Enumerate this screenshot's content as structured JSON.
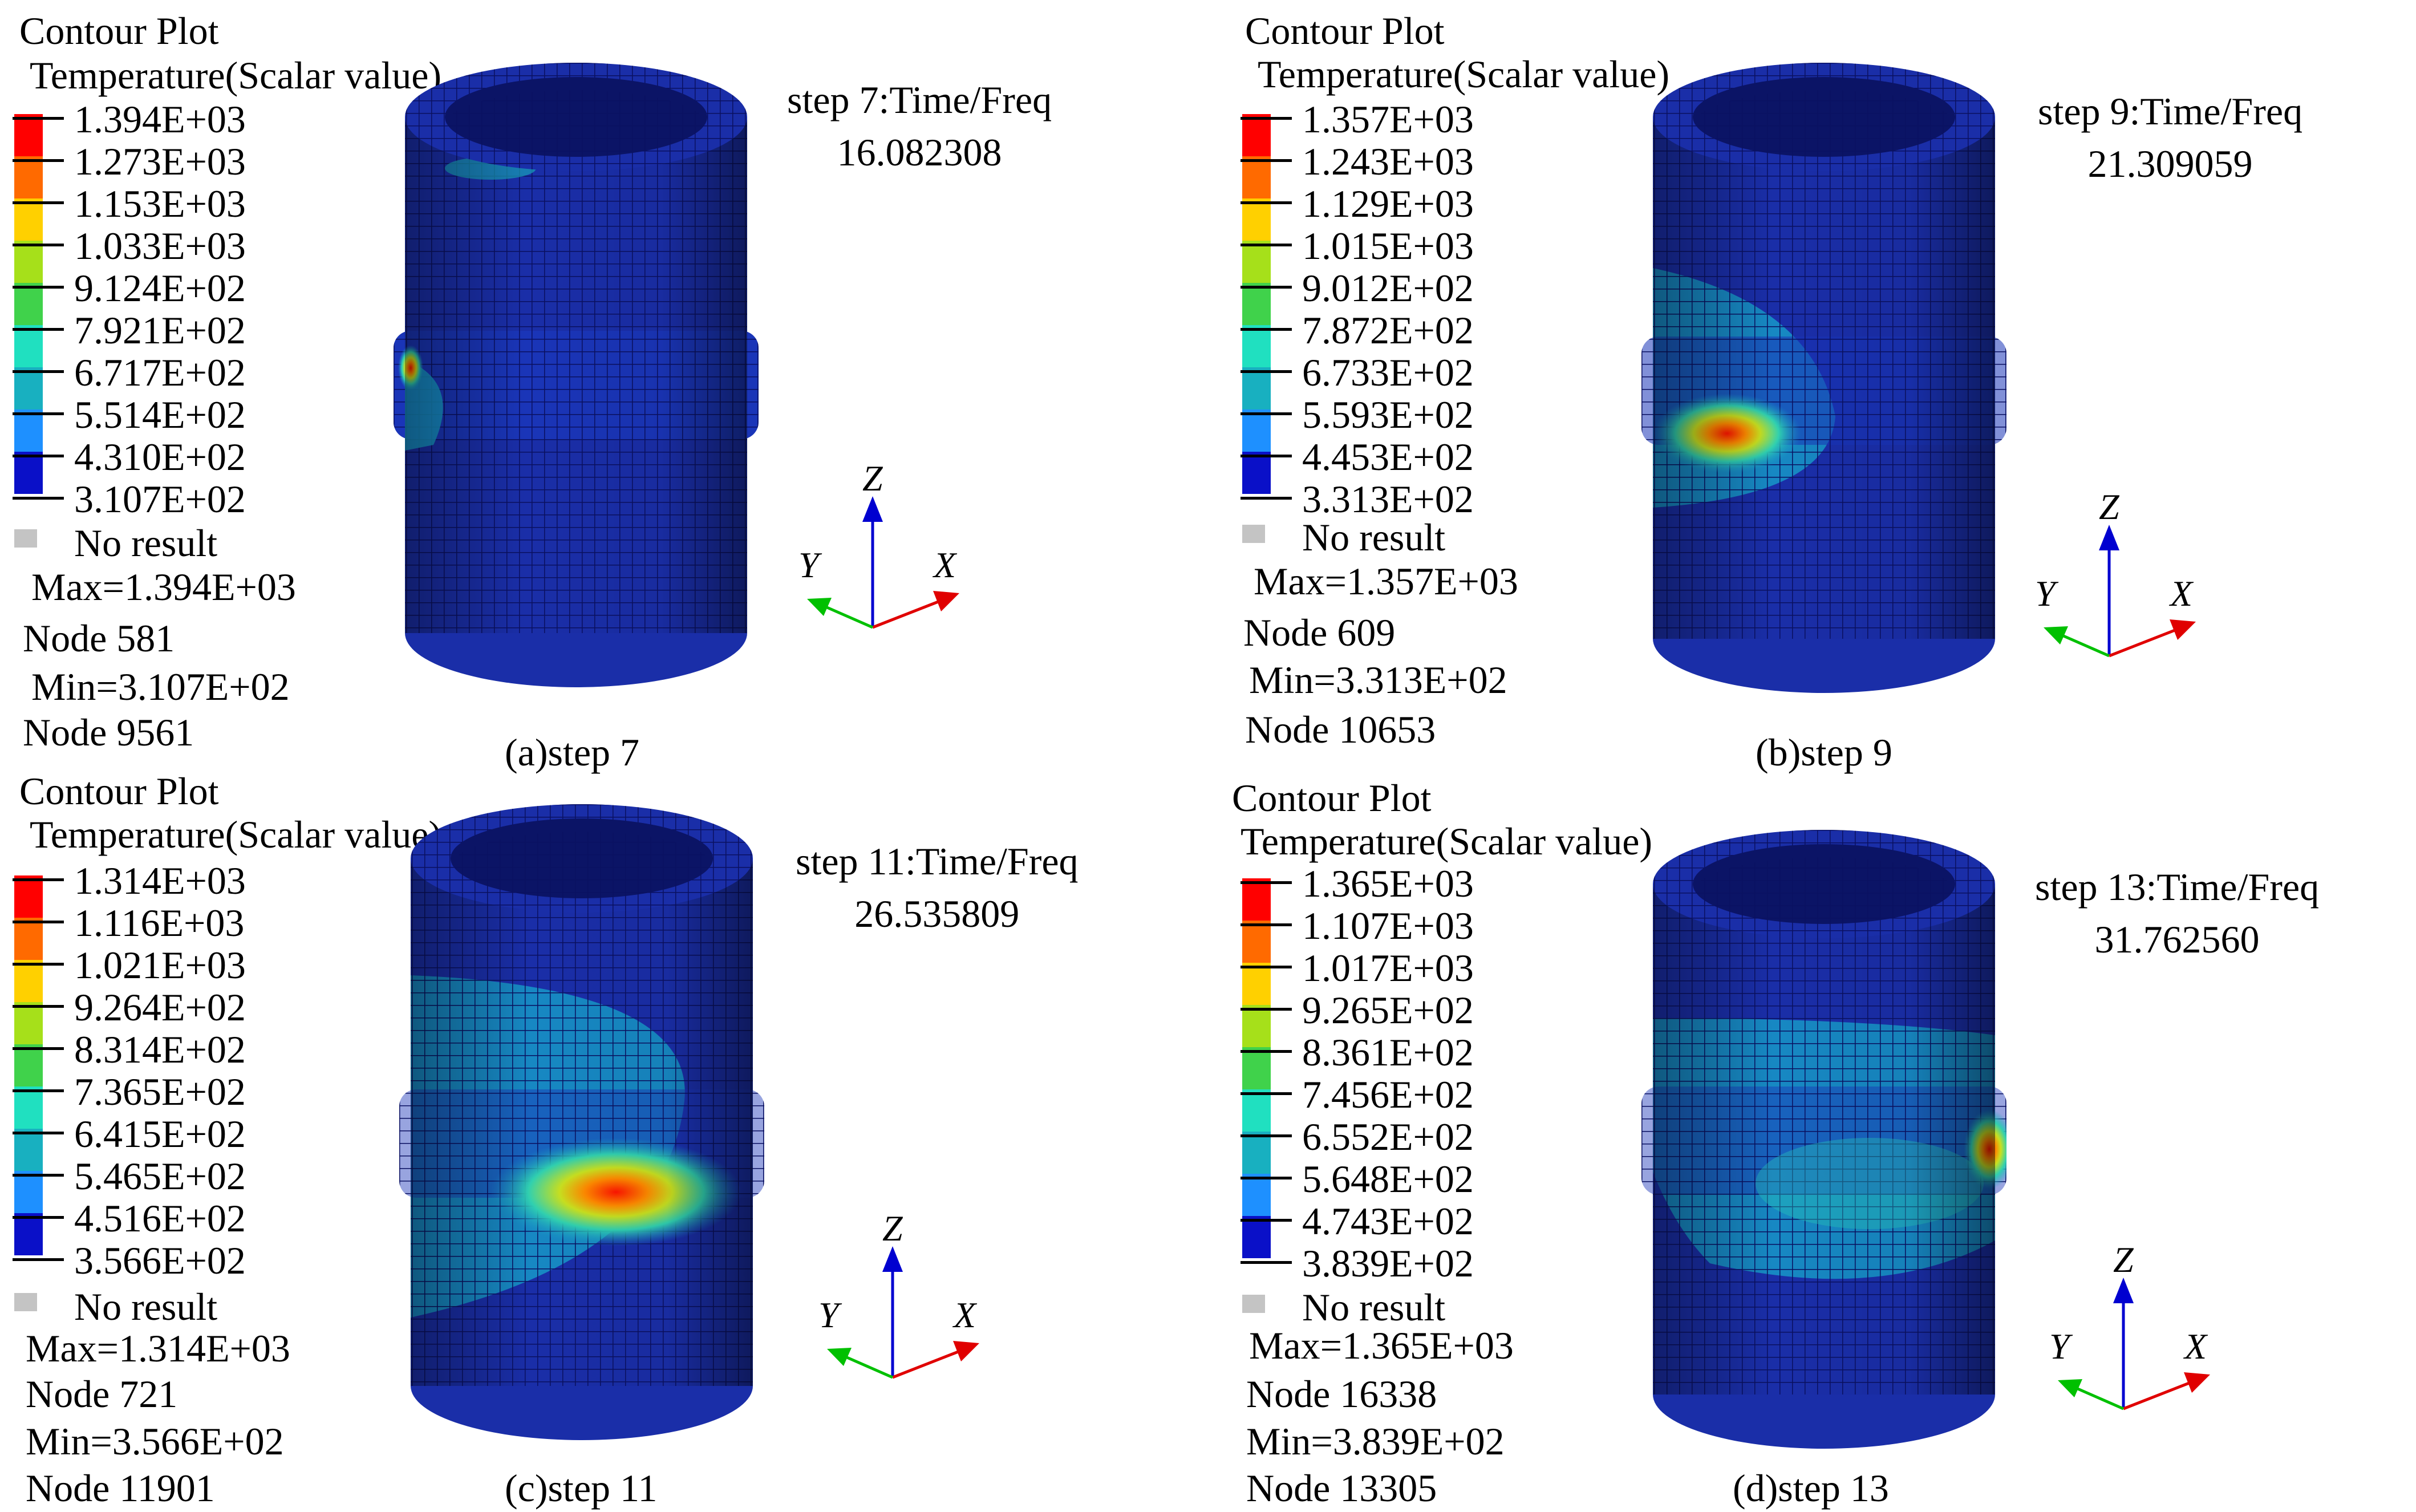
{
  "colors": {
    "scale": [
      "#ff0000",
      "#ff6a00",
      "#ffd000",
      "#a6e01a",
      "#40d24b",
      "#20e0c0",
      "#18b0c0",
      "#1e90ff",
      "#1040e0",
      "#0a10c8"
    ],
    "mesh_base": "#1a2ea8",
    "mesh_line": "#0a1060",
    "axis_x": "#e00000",
    "axis_y": "#00c000",
    "axis_z": "#0000d0",
    "no_result": "#c4c4c4"
  },
  "panels": [
    {
      "title": "Contour Plot",
      "subtitle": "Temperature(Scalar value)",
      "legend": [
        "1.394E+03",
        "1.273E+03",
        "1.153E+03",
        "1.033E+03",
        "9.124E+02",
        "7.921E+02",
        "6.717E+02",
        "5.514E+02",
        "4.310E+02",
        "3.107E+02"
      ],
      "no_result": "No result",
      "max": "Max=1.394E+03",
      "max_node": "Node 581",
      "min": "Min=3.107E+02",
      "min_node": "Node 9561",
      "step_line1": "step 7:Time/Freq",
      "step_line2": "16.082308",
      "caption": "(a)step 7",
      "axes": {
        "x": "X",
        "y": "Y",
        "z": "Z"
      }
    },
    {
      "title": "Contour Plot",
      "subtitle": "Temperature(Scalar value)",
      "legend": [
        "1.357E+03",
        "1.243E+03",
        "1.129E+03",
        "1.015E+03",
        "9.012E+02",
        "7.872E+02",
        "6.733E+02",
        "5.593E+02",
        "4.453E+02",
        "3.313E+02"
      ],
      "no_result": "No result",
      "max": "Max=1.357E+03",
      "max_node": "Node 609",
      "min": "Min=3.313E+02",
      "min_node": "Node 10653",
      "step_line1": "step 9:Time/Freq",
      "step_line2": "21.309059",
      "caption": "(b)step 9",
      "axes": {
        "x": "X",
        "y": "Y",
        "z": "Z"
      }
    },
    {
      "title": "Contour Plot",
      "subtitle": "Temperature(Scalar value)",
      "legend": [
        "1.314E+03",
        "1.116E+03",
        "1.021E+03",
        "9.264E+02",
        "8.314E+02",
        "7.365E+02",
        "6.415E+02",
        "5.465E+02",
        "4.516E+02",
        "3.566E+02"
      ],
      "no_result": "No result",
      "max": "Max=1.314E+03",
      "max_node": "Node 721",
      "min": "Min=3.566E+02",
      "min_node": "Node 11901",
      "step_line1": "step 11:Time/Freq",
      "step_line2": "26.535809",
      "caption": "(c)step 11",
      "axes": {
        "x": "X",
        "y": "Y",
        "z": "Z"
      }
    },
    {
      "title": "Contour Plot",
      "subtitle": "Temperature(Scalar value)",
      "legend": [
        "1.365E+03",
        "1.107E+03",
        "1.017E+03",
        "9.265E+02",
        "8.361E+02",
        "7.456E+02",
        "6.552E+02",
        "5.648E+02",
        "4.743E+02",
        "3.839E+02"
      ],
      "no_result": "No result",
      "max": "Max=1.365E+03",
      "max_node": "Node 16338",
      "min": "Min=3.839E+02",
      "min_node": "Node 13305",
      "step_line1": "step 13:Time/Freq",
      "step_line2": "31.762560",
      "caption": "(d)step 13",
      "axes": {
        "x": "X",
        "y": "Y",
        "z": "Z"
      }
    }
  ]
}
